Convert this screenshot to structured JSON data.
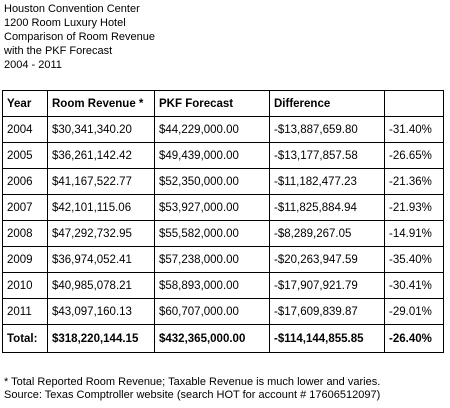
{
  "heading": {
    "lines": [
      "Houston Convention Center",
      "1200 Room Luxury Hotel",
      "Comparison of Room Revenue",
      "with the PKF Forecast",
      "2004 - 2011"
    ]
  },
  "table": {
    "headers": [
      "Year",
      "Room Revenue *",
      "PKF Forecast",
      "Difference",
      ""
    ],
    "rows": [
      [
        "2004",
        "$30,341,340.20",
        "$44,229,000.00",
        "-$13,887,659.80",
        "-31.40%"
      ],
      [
        "2005",
        "$36,261,142.42",
        "$49,439,000.00",
        "-$13,177,857.58",
        "-26.65%"
      ],
      [
        "2006",
        "$41,167,522.77",
        "$52,350,000.00",
        "-$11,182,477.23",
        "-21.36%"
      ],
      [
        "2007",
        "$42,101,115.06",
        "$53,927,000.00",
        "-$11,825,884.94",
        "-21.93%"
      ],
      [
        "2008",
        "$47,292,732.95",
        "$55,582,000.00",
        "-$8,289,267.05",
        "-14.91%"
      ],
      [
        "2009",
        "$36,974,052.41",
        "$57,238,000.00",
        "-$20,263,947.59",
        "-35.40%"
      ],
      [
        "2010",
        "$40,985,078.21",
        "$58,893,000.00",
        "-$17,907,921.79",
        "-30.41%"
      ],
      [
        "2011",
        "$43,097,160.13",
        "$60,707,000.00",
        "-$17,609,839.87",
        "-29.01%"
      ]
    ],
    "total": [
      "Total:",
      "$318,220,144.15",
      "$432,365,000.00",
      "-$114,144,855.85",
      "-26.40%"
    ]
  },
  "footer": {
    "note": "* Total Reported Room Revenue; Taxable Revenue is much lower and varies.",
    "source": "Source: Texas Comptroller website  (search HOT for account # 17606512097)"
  }
}
